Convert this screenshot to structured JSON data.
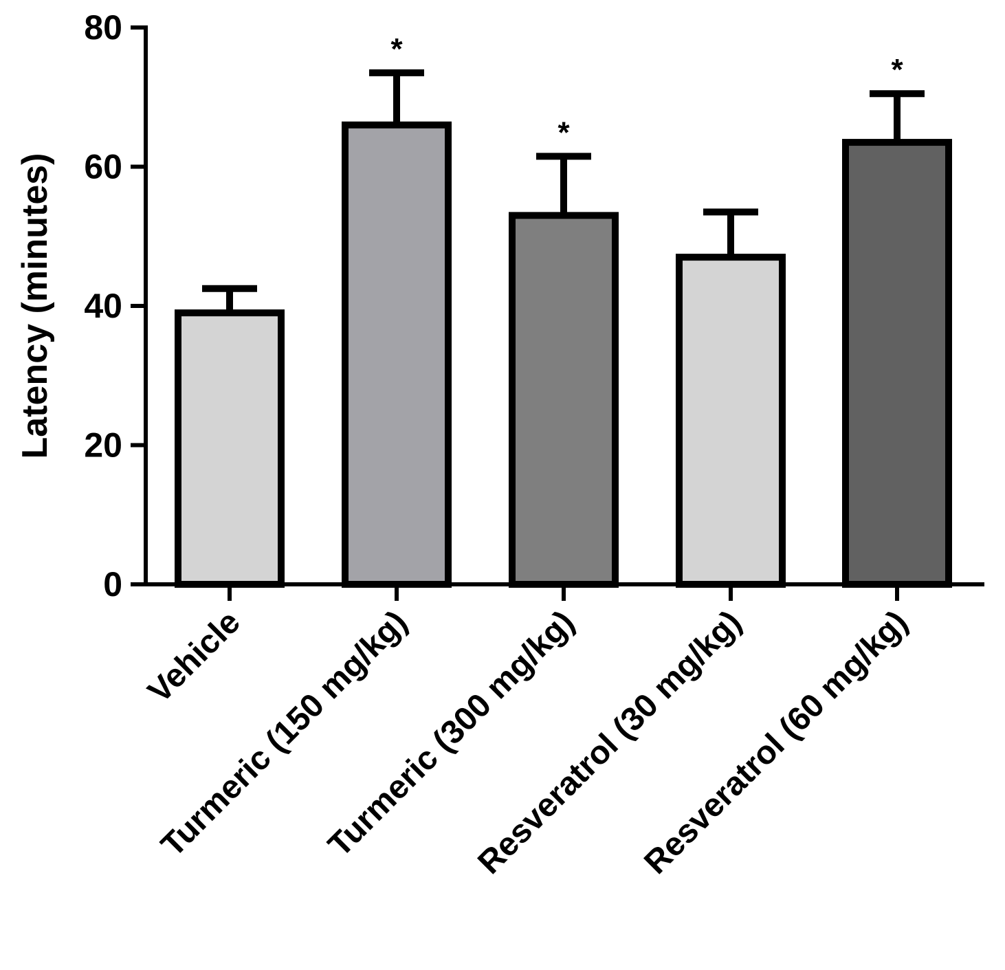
{
  "chart_data": {
    "type": "bar",
    "title": "",
    "xlabel": "",
    "ylabel": "Latency (minutes)",
    "ylim": [
      0,
      80
    ],
    "yticks": [
      0,
      20,
      40,
      60,
      80
    ],
    "grid": false,
    "categories": [
      "Vehicle",
      "Turmeric (150 mg/kg)",
      "Turmeric (300 mg/kg)",
      "Resveratrol (30 mg/kg)",
      "Resveratrol (60 mg/kg)"
    ],
    "values": [
      39,
      66,
      53,
      47,
      63.5
    ],
    "errors": [
      3.5,
      7.5,
      8.5,
      6.5,
      7.0
    ],
    "annotations": [
      "",
      "*",
      "*",
      "",
      "*"
    ],
    "colors": [
      "#d4d4d4",
      "#a3a3a8",
      "#7f7f7f",
      "#d4d4d4",
      "#616161"
    ]
  }
}
